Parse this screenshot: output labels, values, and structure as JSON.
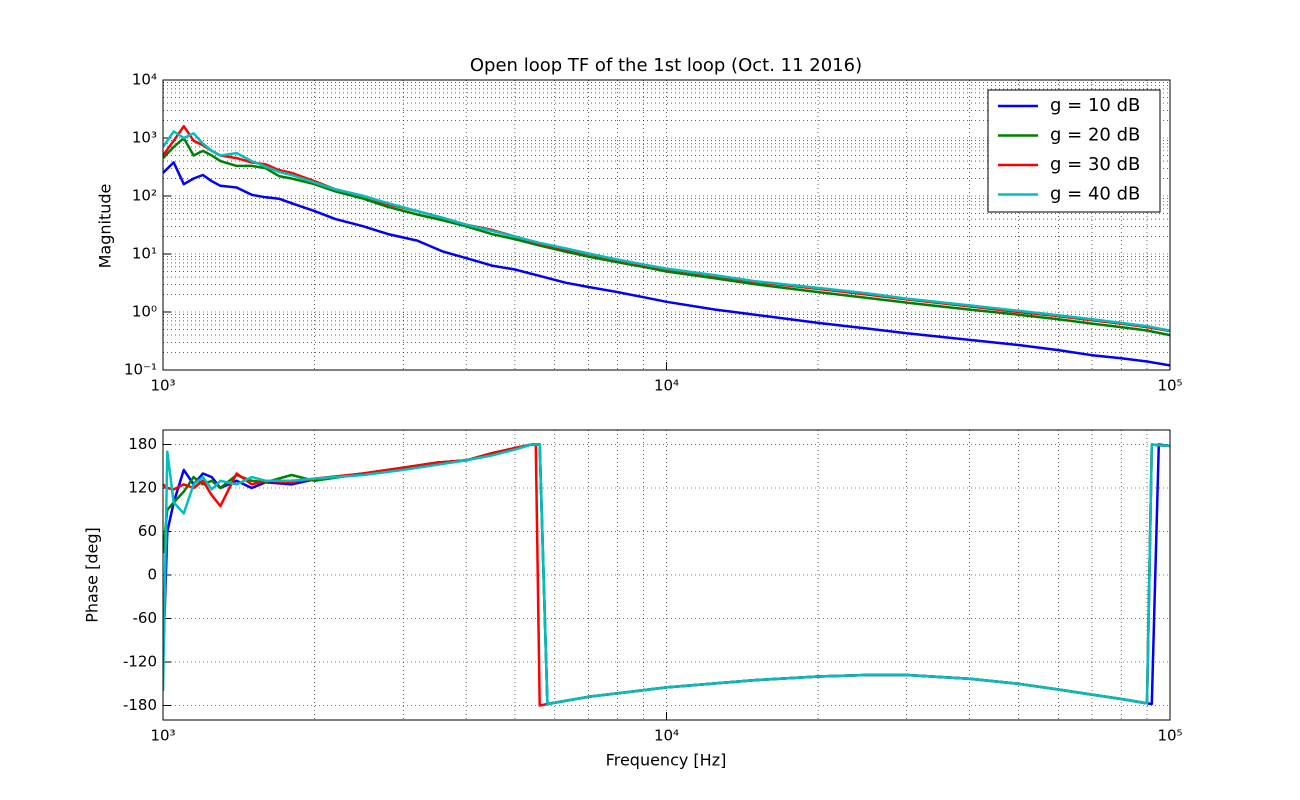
{
  "chart_data": [
    {
      "type": "line",
      "title": "Open loop TF of the 1st loop (Oct. 11 2016)",
      "y_label": "Magnitude",
      "xscale": "log",
      "yscale": "log",
      "grid": true,
      "legend": "upper right",
      "xlim": [
        1000,
        100000
      ],
      "xticks": [
        {
          "value": 1000,
          "label": "10³"
        },
        {
          "value": 10000,
          "label": "10⁴"
        },
        {
          "value": 100000,
          "label": "10⁵"
        }
      ],
      "ylim": [
        0.1,
        10000
      ],
      "yticks": [
        {
          "value": 0.1,
          "label": "10⁻¹"
        },
        {
          "value": 1,
          "label": "10⁰"
        },
        {
          "value": 10,
          "label": "10¹"
        },
        {
          "value": 100,
          "label": "10²"
        },
        {
          "value": 1000,
          "label": "10³"
        },
        {
          "value": 10000,
          "label": "10⁴"
        }
      ],
      "x": [
        1000,
        1050,
        1100,
        1150,
        1200,
        1250,
        1300,
        1400,
        1500,
        1600,
        1700,
        1800,
        2000,
        2200,
        2500,
        2800,
        3200,
        3600,
        4000,
        4500,
        5000,
        5600,
        6300,
        7000,
        8000,
        9000,
        10000,
        12500,
        15000,
        20000,
        25000,
        30000,
        40000,
        50000,
        60000,
        70000,
        80000,
        90000,
        100000
      ],
      "series": [
        {
          "name": "g = 10 dB",
          "color": "#0000ff",
          "values": [
            250,
            380,
            160,
            200,
            230,
            180,
            150,
            140,
            105,
            95,
            90,
            75,
            55,
            40,
            30,
            22,
            17,
            11,
            8.5,
            6.3,
            5.4,
            4.2,
            3.2,
            2.7,
            2.2,
            1.8,
            1.5,
            1.1,
            0.9,
            0.65,
            0.52,
            0.43,
            0.33,
            0.27,
            0.22,
            0.18,
            0.16,
            0.14,
            0.12
          ]
        },
        {
          "name": "g = 20 dB",
          "color": "#008000",
          "values": [
            450,
            700,
            1000,
            500,
            600,
            500,
            400,
            330,
            330,
            300,
            220,
            200,
            160,
            120,
            90,
            65,
            48,
            38,
            30,
            22,
            18,
            14,
            11,
            9,
            7.2,
            6,
            5,
            3.8,
            3,
            2.2,
            1.75,
            1.45,
            1.1,
            0.9,
            0.75,
            0.63,
            0.55,
            0.48,
            0.4
          ]
        },
        {
          "name": "g = 30 dB",
          "color": "#ff0000",
          "values": [
            500,
            900,
            1600,
            900,
            750,
            600,
            500,
            450,
            380,
            350,
            280,
            250,
            180,
            130,
            100,
            72,
            55,
            42,
            32,
            26,
            20,
            15,
            12,
            10,
            7.8,
            6.4,
            5.5,
            4.2,
            3.3,
            2.5,
            2,
            1.65,
            1.25,
            1,
            0.85,
            0.72,
            0.63,
            0.55,
            0.47
          ]
        },
        {
          "name": "g = 40 dB",
          "color": "#00bfbf",
          "values": [
            700,
            1300,
            1000,
            1200,
            800,
            600,
            500,
            550,
            400,
            320,
            260,
            230,
            170,
            130,
            100,
            75,
            55,
            42,
            32,
            25,
            20,
            15.5,
            12.5,
            10.2,
            8,
            6.6,
            5.6,
            4.3,
            3.4,
            2.6,
            2.1,
            1.7,
            1.3,
            1.05,
            0.88,
            0.75,
            0.65,
            0.57,
            0.48
          ]
        }
      ]
    },
    {
      "type": "line",
      "x_label": "Frequency [Hz]",
      "y_label": "Phase [deg]",
      "xscale": "log",
      "grid": true,
      "xlim": [
        1000,
        100000
      ],
      "xticks": [
        {
          "value": 1000,
          "label": "10³"
        },
        {
          "value": 10000,
          "label": "10⁴"
        },
        {
          "value": 100000,
          "label": "10⁵"
        }
      ],
      "ylim": [
        -200,
        200
      ],
      "yticks": [
        -180,
        -120,
        -60,
        0,
        60,
        120,
        180
      ],
      "x": [
        1000,
        1020,
        1050,
        1100,
        1150,
        1200,
        1250,
        1300,
        1400,
        1500,
        1600,
        1800,
        2000,
        2500,
        3000,
        3500,
        4000,
        4500,
        5000,
        5400,
        5500,
        5600,
        5800,
        7000,
        10000,
        15000,
        20000,
        25000,
        30000,
        40000,
        50000,
        60000,
        70000,
        80000,
        90000,
        92000,
        95000,
        100000
      ],
      "series": [
        {
          "name": "g = 10 dB",
          "color": "#0000ff",
          "values": [
            -120,
            60,
            100,
            145,
            125,
            140,
            135,
            120,
            130,
            120,
            128,
            125,
            132,
            140,
            148,
            155,
            158,
            168,
            175,
            180,
            180,
            180,
            -178,
            -168,
            -155,
            -145,
            -140,
            -138,
            -138,
            -143,
            -150,
            -158,
            -165,
            -171,
            -177,
            -178,
            180,
            178
          ]
        },
        {
          "name": "g = 20 dB",
          "color": "#008000",
          "values": [
            30,
            90,
            100,
            115,
            135,
            125,
            130,
            120,
            138,
            130,
            128,
            138,
            130,
            140,
            148,
            155,
            158,
            168,
            175,
            180,
            180,
            180,
            -178,
            -168,
            -155,
            -145,
            -140,
            -138,
            -138,
            -143,
            -150,
            -158,
            -165,
            -171,
            -177,
            180,
            179,
            178
          ]
        },
        {
          "name": "g = 30 dB",
          "color": "#ff0000",
          "values": [
            125,
            120,
            118,
            125,
            120,
            130,
            110,
            95,
            140,
            125,
            130,
            128,
            133,
            140,
            148,
            155,
            158,
            168,
            175,
            180,
            180,
            -180,
            -178,
            -168,
            -155,
            -145,
            -140,
            -138,
            -138,
            -143,
            -150,
            -158,
            -165,
            -171,
            -177,
            180,
            179,
            178
          ]
        },
        {
          "name": "g = 40 dB",
          "color": "#00bfbf",
          "values": [
            -160,
            170,
            100,
            85,
            125,
            135,
            118,
            130,
            125,
            135,
            130,
            130,
            133,
            138,
            145,
            152,
            158,
            165,
            173,
            180,
            180,
            180,
            -178,
            -168,
            -155,
            -145,
            -140,
            -138,
            -138,
            -143,
            -150,
            -158,
            -165,
            -171,
            -177,
            180,
            179,
            178
          ]
        }
      ]
    }
  ]
}
